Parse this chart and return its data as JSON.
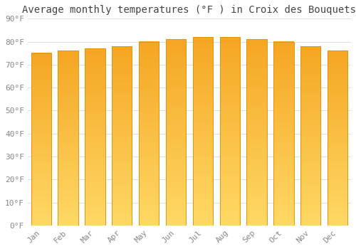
{
  "title": "Average monthly temperatures (°F ) in Croix des Bouquets",
  "months": [
    "Jan",
    "Feb",
    "Mar",
    "Apr",
    "May",
    "Jun",
    "Jul",
    "Aug",
    "Sep",
    "Oct",
    "Nov",
    "Dec"
  ],
  "values": [
    75,
    76,
    77,
    78,
    80,
    81,
    82,
    82,
    81,
    80,
    78,
    76
  ],
  "bar_color_top": "#F5A623",
  "bar_color_bottom": "#FFD966",
  "ylim": [
    0,
    90
  ],
  "yticks": [
    0,
    10,
    20,
    30,
    40,
    50,
    60,
    70,
    80,
    90
  ],
  "ytick_labels": [
    "0°F",
    "10°F",
    "20°F",
    "30°F",
    "40°F",
    "50°F",
    "60°F",
    "70°F",
    "80°F",
    "90°F"
  ],
  "background_color": "#FFFFFF",
  "grid_color": "#DDDDDD",
  "title_fontsize": 10,
  "tick_fontsize": 8,
  "bar_edge_color": "#E8940A"
}
